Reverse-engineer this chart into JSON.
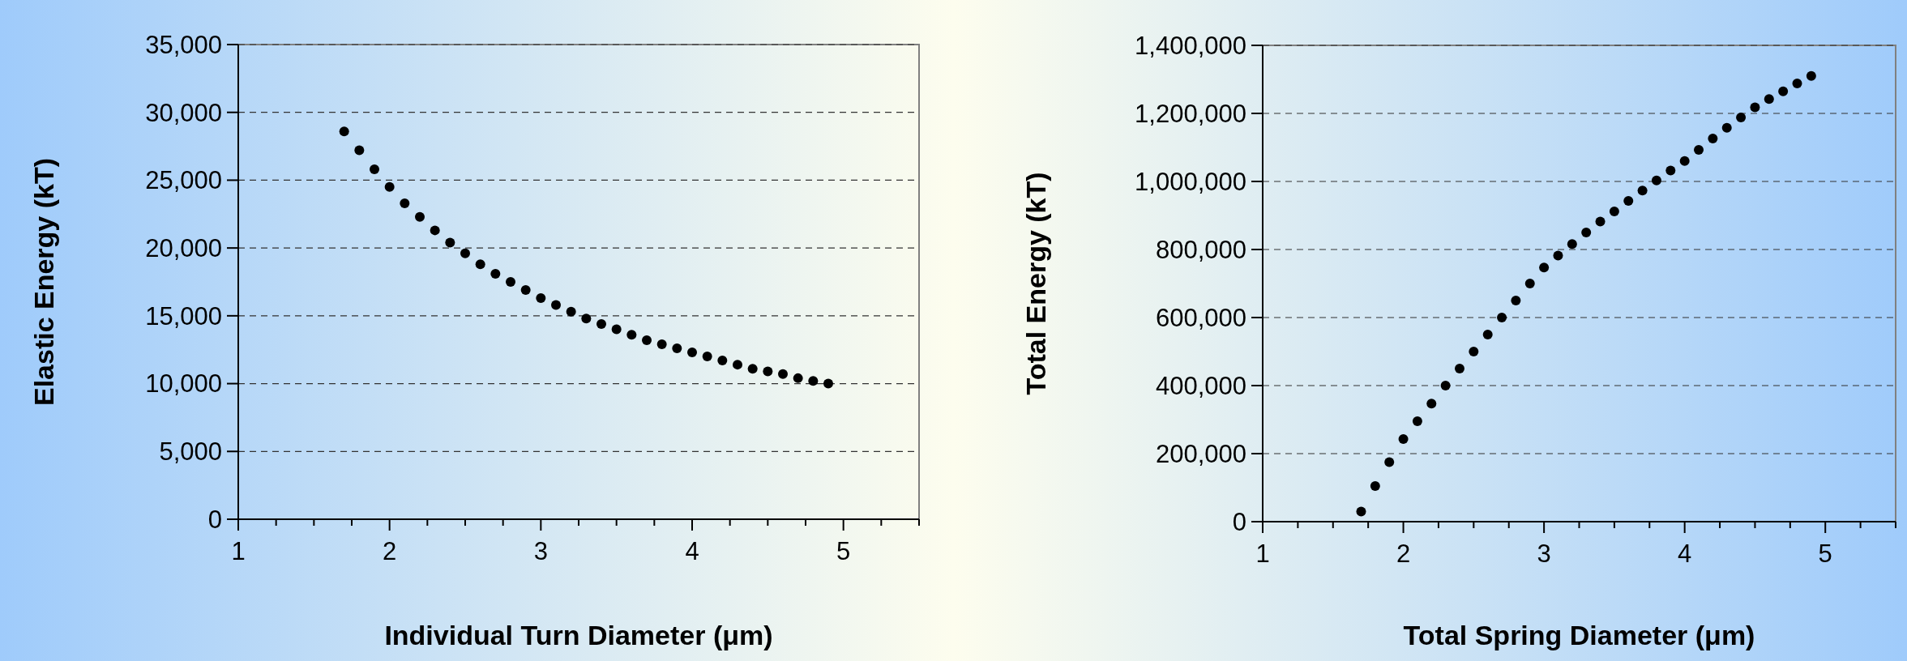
{
  "chart_data": [
    {
      "type": "scatter",
      "xlabel": "Individual Turn Diameter (μm)",
      "ylabel": "Elastic Energy (kT)",
      "marker": "circle",
      "grid": "y",
      "xlim": [
        1,
        5.5
      ],
      "ylim": [
        0,
        35000
      ],
      "xticks": [
        1,
        {
          "value": 1.25,
          "label": null
        },
        {
          "value": 1.5,
          "label": null
        },
        {
          "value": 1.75,
          "label": null
        },
        2,
        {
          "value": 2.25,
          "label": null
        },
        {
          "value": 2.5,
          "label": null
        },
        {
          "value": 2.75,
          "label": null
        },
        3,
        {
          "value": 3.25,
          "label": null
        },
        {
          "value": 3.5,
          "label": null
        },
        {
          "value": 3.75,
          "label": null
        },
        4,
        {
          "value": 4.25,
          "label": null
        },
        {
          "value": 4.5,
          "label": null
        },
        {
          "value": 4.75,
          "label": null
        },
        5,
        {
          "value": 5.25,
          "label": null
        },
        {
          "value": 5.5,
          "label": null
        }
      ],
      "yticks": [
        0,
        {
          "value": 5000,
          "label": "5,000"
        },
        {
          "value": 10000,
          "label": "10,000"
        },
        {
          "value": 15000,
          "label": "15,000"
        },
        {
          "value": 20000,
          "label": "20,000"
        },
        {
          "value": 25000,
          "label": "25,000"
        },
        {
          "value": 30000,
          "label": "30,000"
        },
        {
          "value": 35000,
          "label": "35,000"
        }
      ],
      "series": [
        {
          "color": "#000000",
          "x": [
            1.7,
            1.8,
            1.9,
            2.0,
            2.1,
            2.2,
            2.3,
            2.4,
            2.5,
            2.6,
            2.7,
            2.8,
            2.9,
            3.0,
            3.1,
            3.2,
            3.3,
            3.4,
            3.5,
            3.6,
            3.7,
            3.8,
            3.9,
            4.0,
            4.1,
            4.2,
            4.3,
            4.4,
            4.5,
            4.6,
            4.7,
            4.8,
            4.9
          ],
          "values": [
            28600,
            27200,
            25800,
            24500,
            23300,
            22300,
            21300,
            20400,
            19600,
            18800,
            18100,
            17500,
            16900,
            16300,
            15800,
            15300,
            14800,
            14400,
            14000,
            13600,
            13200,
            12900,
            12600,
            12300,
            12000,
            11700,
            11400,
            11100,
            10900,
            10700,
            10400,
            10200,
            10000
          ]
        }
      ]
    },
    {
      "type": "scatter",
      "xlabel": "Total Spring Diameter (μm)",
      "ylabel": "Total Energy (kT)",
      "marker": "circle",
      "grid": "y",
      "xlim": [
        1,
        5.5
      ],
      "ylim": [
        0,
        1400000
      ],
      "xticks": [
        1,
        {
          "value": 1.25,
          "label": null
        },
        {
          "value": 1.5,
          "label": null
        },
        {
          "value": 1.75,
          "label": null
        },
        2,
        {
          "value": 2.25,
          "label": null
        },
        {
          "value": 2.5,
          "label": null
        },
        {
          "value": 2.75,
          "label": null
        },
        3,
        {
          "value": 3.25,
          "label": null
        },
        {
          "value": 3.5,
          "label": null
        },
        {
          "value": 3.75,
          "label": null
        },
        4,
        {
          "value": 4.25,
          "label": null
        },
        {
          "value": 4.5,
          "label": null
        },
        {
          "value": 4.75,
          "label": null
        },
        5,
        {
          "value": 5.25,
          "label": null
        },
        {
          "value": 5.5,
          "label": null
        }
      ],
      "yticks": [
        0,
        {
          "value": 200000,
          "label": "200,000"
        },
        {
          "value": 400000,
          "label": "400,000"
        },
        {
          "value": 600000,
          "label": "600,000"
        },
        {
          "value": 800000,
          "label": "800,000"
        },
        {
          "value": 1000000,
          "label": "1,000,000"
        },
        {
          "value": 1200000,
          "label": "1,200,000"
        },
        {
          "value": 1400000,
          "label": "1,400,000"
        }
      ],
      "series": [
        {
          "color": "#000000",
          "x": [
            1.7,
            1.8,
            1.9,
            2.0,
            2.1,
            2.2,
            2.3,
            2.4,
            2.5,
            2.6,
            2.7,
            2.8,
            2.9,
            3.0,
            3.1,
            3.2,
            3.3,
            3.4,
            3.5,
            3.6,
            3.7,
            3.8,
            3.9,
            4.0,
            4.1,
            4.2,
            4.3,
            4.4,
            4.5,
            4.6,
            4.7,
            4.8,
            4.9
          ],
          "values": [
            30000,
            105000,
            175000,
            243000,
            295000,
            347000,
            400000,
            450000,
            500000,
            550000,
            600000,
            650000,
            700000,
            747000,
            782000,
            816000,
            850000,
            882000,
            912000,
            943000,
            973000,
            1003000,
            1032000,
            1060000,
            1093000,
            1126000,
            1158000,
            1188000,
            1218000,
            1242000,
            1265000,
            1288000,
            1310000
          ]
        }
      ]
    }
  ]
}
